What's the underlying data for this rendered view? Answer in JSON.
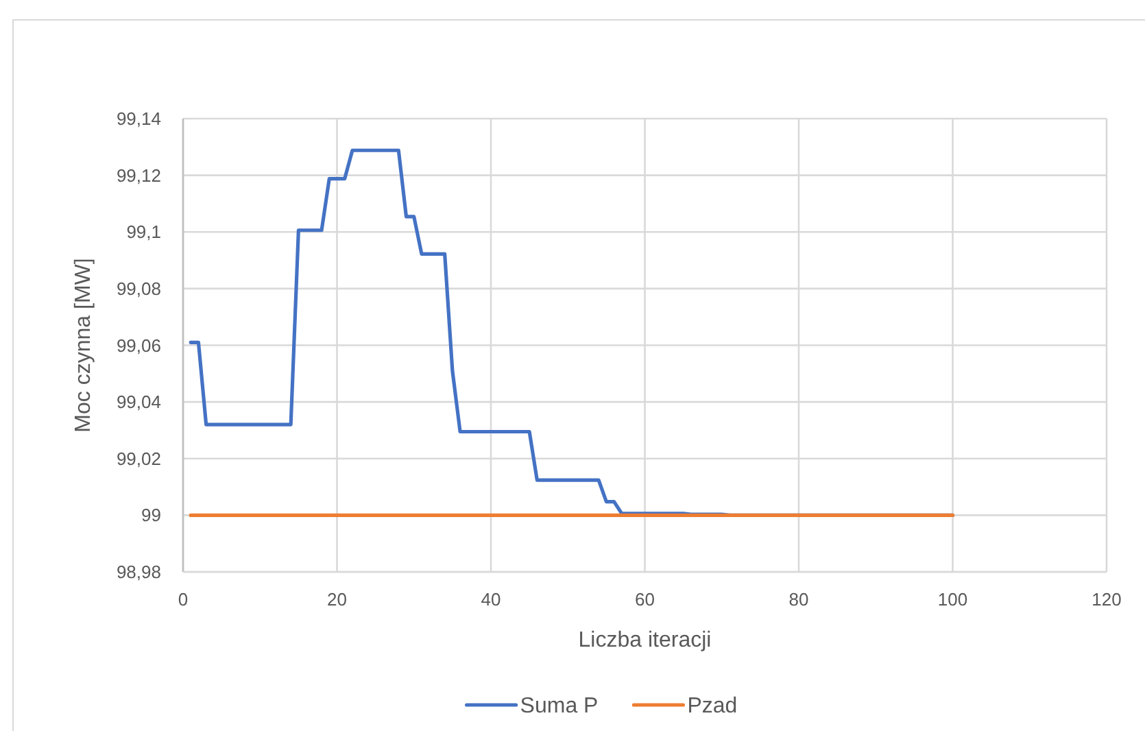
{
  "chart_data": {
    "type": "line",
    "xlabel": "Liczba iteracji",
    "ylabel": "Moc czynna [MW]",
    "xlim": [
      0,
      120
    ],
    "xticks": [
      0,
      20,
      40,
      60,
      80,
      100,
      120
    ],
    "ylim": [
      98.98,
      99.14
    ],
    "yticks": [
      {
        "value": 98.98,
        "label": "98,98"
      },
      {
        "value": 99,
        "label": "99"
      },
      {
        "value": 99.02,
        "label": "99,02"
      },
      {
        "value": 99.04,
        "label": "99,04"
      },
      {
        "value": 99.06,
        "label": "99,06"
      },
      {
        "value": 99.08,
        "label": "99,08"
      },
      {
        "value": 99.1,
        "label": "99,1"
      },
      {
        "value": 99.12,
        "label": "99,12"
      },
      {
        "value": 99.14,
        "label": "99,14"
      }
    ],
    "grid": true,
    "legend": "bottom",
    "series": [
      {
        "name": "Suma P",
        "color": "#4472c4",
        "x": [
          1,
          2,
          3,
          14,
          15,
          18,
          19,
          21,
          22,
          28,
          29,
          30,
          31,
          34,
          35,
          36,
          45,
          46,
          54,
          55,
          56,
          57,
          65,
          66,
          70,
          71,
          100
        ],
        "values": [
          99.061,
          99.061,
          99.032,
          99.032,
          99.1006,
          99.1006,
          99.1188,
          99.1188,
          99.1288,
          99.1288,
          99.1054,
          99.1054,
          99.0922,
          99.0922,
          99.051,
          99.0295,
          99.0295,
          99.0124,
          99.0124,
          99.0048,
          99.0048,
          99.0006,
          99.0006,
          99.0003,
          99.0003,
          99,
          99
        ]
      },
      {
        "name": "Pzad",
        "color": "#ed7d31",
        "x": [
          1,
          100
        ],
        "values": [
          99,
          99
        ]
      }
    ]
  }
}
